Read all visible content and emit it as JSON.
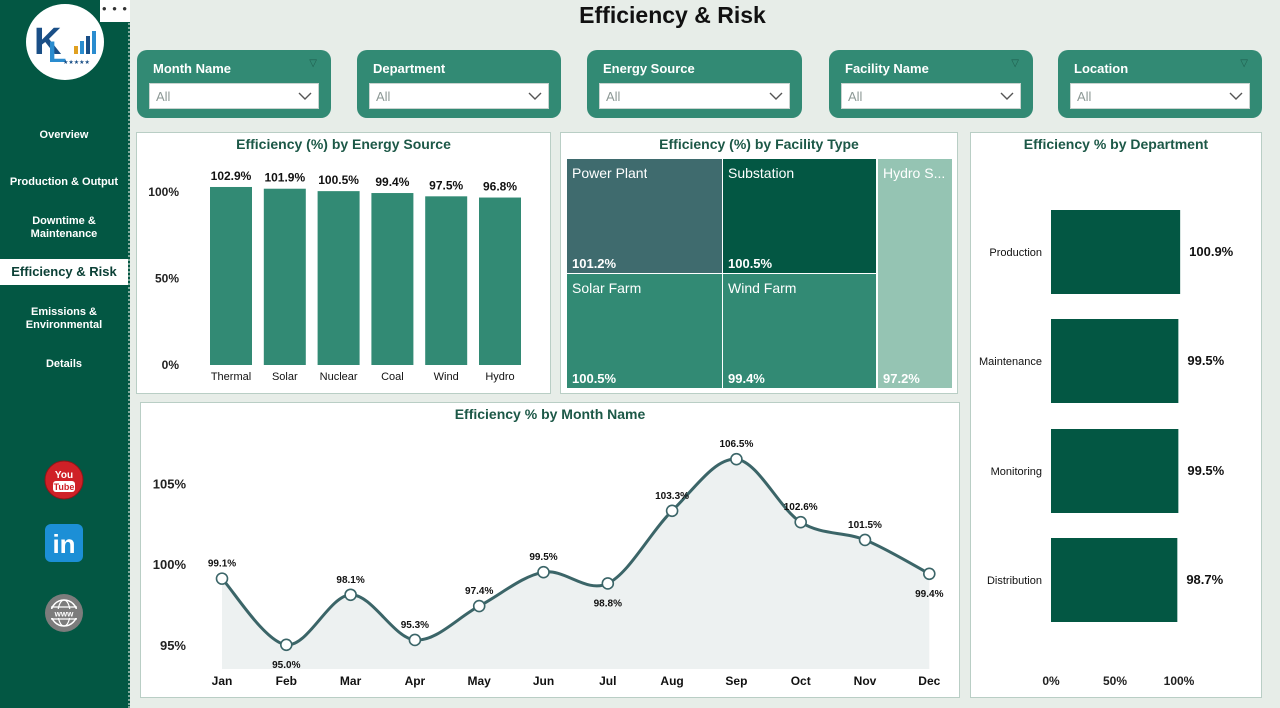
{
  "page": {
    "title": "Efficiency & Risk"
  },
  "sidebar": {
    "menu_glyph": "• • •",
    "items": [
      {
        "label": "Overview"
      },
      {
        "label": "Production & Output"
      },
      {
        "label": "Downtime &",
        "label2": "Maintenance"
      },
      {
        "label": "Efficiency & Risk"
      },
      {
        "label": "Emissions &",
        "label2": "Environmental"
      },
      {
        "label": "Details"
      }
    ],
    "social": [
      {
        "name": "YouTube",
        "icon": "youtube-icon",
        "line1": "You",
        "line2": "Tube"
      },
      {
        "name": "LinkedIn",
        "icon": "linkedin-icon",
        "text": "in"
      },
      {
        "name": "Website",
        "icon": "globe-icon",
        "text": "www"
      }
    ]
  },
  "slicers": [
    {
      "label": "Month Name",
      "value": "All"
    },
    {
      "label": "Department",
      "value": "All"
    },
    {
      "label": "Energy Source",
      "value": "All"
    },
    {
      "label": "Facility Name",
      "value": "All"
    },
    {
      "label": "Location",
      "value": "All"
    }
  ],
  "colors": {
    "sidebar": "#035743",
    "bar": "#328a74",
    "dark_green": "#035743",
    "slate": "#3f6b6e",
    "light_green": "#95c4b3",
    "line": "#3b6568",
    "area": "#edf1f1"
  },
  "chart_data": [
    {
      "type": "bar",
      "title": "Efficiency (%) by Energy Source",
      "categories": [
        "Thermal",
        "Solar",
        "Nuclear",
        "Coal",
        "Wind",
        "Hydro"
      ],
      "values": [
        102.9,
        101.9,
        100.5,
        99.4,
        97.5,
        96.8
      ],
      "labels": [
        "102.9%",
        "101.9%",
        "100.5%",
        "99.4%",
        "97.5%",
        "96.8%"
      ],
      "ylim": [
        0,
        100
      ],
      "yticks": [
        "100%",
        "50%",
        "0%"
      ]
    },
    {
      "type": "treemap",
      "title": "Efficiency (%) by Facility Type",
      "items": [
        {
          "name": "Power Plant",
          "value": "101.2%"
        },
        {
          "name": "Substation",
          "value": "100.5%"
        },
        {
          "name": "Hydro S...",
          "value": "97.2%"
        },
        {
          "name": "Solar Farm",
          "value": "100.5%"
        },
        {
          "name": "Wind Farm",
          "value": "99.4%"
        }
      ]
    },
    {
      "type": "bar",
      "orientation": "horizontal",
      "title": "Efficiency % by Department",
      "categories": [
        "Production",
        "Maintenance",
        "Monitoring",
        "Distribution"
      ],
      "values": [
        100.9,
        99.5,
        99.5,
        98.7
      ],
      "labels": [
        "100.9%",
        "99.5%",
        "99.5%",
        "98.7%"
      ],
      "xlim": [
        0,
        100
      ],
      "xticks": [
        "0%",
        "50%",
        "100%"
      ]
    },
    {
      "type": "area",
      "title": "Efficiency % by Month Name",
      "x": [
        "Jan",
        "Feb",
        "Mar",
        "Apr",
        "May",
        "Jun",
        "Jul",
        "Aug",
        "Sep",
        "Oct",
        "Nov",
        "Dec"
      ],
      "values": [
        99.1,
        95.0,
        98.1,
        95.3,
        97.4,
        99.5,
        98.8,
        103.3,
        106.5,
        102.6,
        101.5,
        99.4
      ],
      "labels": [
        "99.1%",
        "95.0%",
        "98.1%",
        "95.3%",
        "97.4%",
        "99.5%",
        "98.8%",
        "103.3%",
        "106.5%",
        "102.6%",
        "101.5%",
        "99.4%"
      ],
      "ylim": [
        93.5,
        108
      ],
      "yticks": [
        {
          "value": 105,
          "label": "105%"
        },
        {
          "value": 100,
          "label": "100%"
        },
        {
          "value": 95,
          "label": "95%"
        }
      ]
    }
  ]
}
